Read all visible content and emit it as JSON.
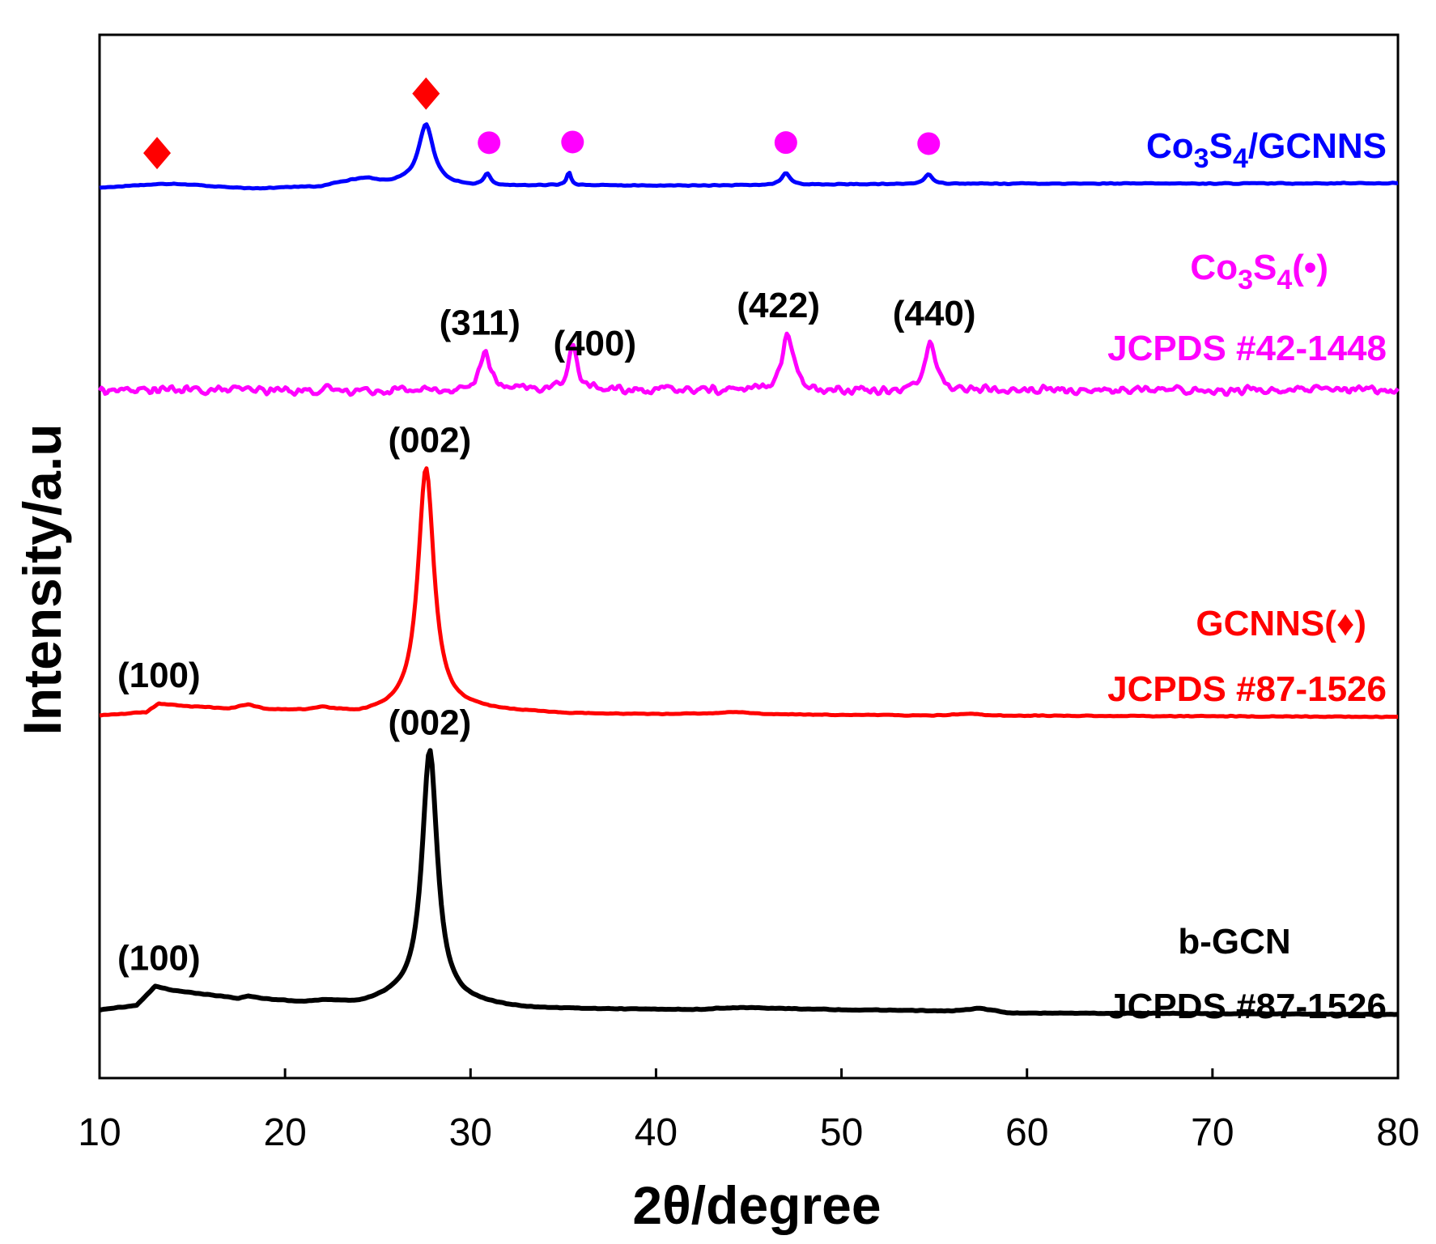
{
  "chart_data": {
    "type": "line",
    "title": "",
    "xlabel": "2θ/degree",
    "ylabel": "Intensity/a.u",
    "xlim": [
      10,
      80
    ],
    "xticks": [
      10,
      20,
      30,
      40,
      50,
      60,
      70,
      80
    ],
    "xtick_labels": [
      "10",
      "20",
      "30",
      "40",
      "50",
      "60",
      "70",
      "80"
    ],
    "yticks_shown": false,
    "series": [
      {
        "key": "co3s4_gcnns",
        "name": "Co3S4/GCNNS",
        "color": "#0000ff",
        "baseline": [
          [
            10,
            0
          ],
          [
            12,
            0.6
          ],
          [
            14,
            1.0
          ],
          [
            16,
            0.4
          ],
          [
            18,
            -0.2
          ],
          [
            20,
            0.1
          ],
          [
            22,
            0.3
          ],
          [
            23,
            1.4
          ],
          [
            24.3,
            2.2
          ],
          [
            25.5,
            1.2
          ],
          [
            26.5,
            1.4
          ],
          [
            30,
            0.3
          ],
          [
            35,
            0.6
          ],
          [
            40,
            0.5
          ],
          [
            46,
            0.6
          ],
          [
            50,
            0.8
          ],
          [
            55,
            0.9
          ],
          [
            60,
            1.0
          ],
          [
            70,
            1.0
          ],
          [
            80,
            1.1
          ]
        ],
        "peaks": [
          [
            27.6,
            14,
            0.48
          ],
          [
            30.9,
            2.7,
            0.22
          ],
          [
            35.3,
            3.2,
            0.13
          ],
          [
            47.0,
            2.8,
            0.28
          ],
          [
            54.7,
            2.2,
            0.28
          ]
        ],
        "noise": 0.15
      },
      {
        "key": "co3s4_ref",
        "name": "Co3S4 JCPDS #42-1448",
        "color": "#ff00ff",
        "baseline": [
          [
            10,
            0
          ],
          [
            80,
            0
          ]
        ],
        "peaks": [
          [
            30.8,
            10,
            0.3
          ],
          [
            35.5,
            11,
            0.3
          ],
          [
            47.1,
            14,
            0.35
          ],
          [
            54.8,
            12,
            0.33
          ]
        ],
        "noise": 1.4
      },
      {
        "key": "gcnns",
        "name": "GCNNS JCPDS #87-1526",
        "color": "#ff0000",
        "baseline": [
          [
            10,
            0
          ],
          [
            12.5,
            0.8
          ],
          [
            13.2,
            3.2
          ],
          [
            14.5,
            2.5
          ],
          [
            17,
            1.8
          ],
          [
            18,
            2.8
          ],
          [
            19,
            1.5
          ],
          [
            21,
            1.3
          ],
          [
            22,
            1.8
          ],
          [
            24,
            0.4
          ],
          [
            26,
            1.2
          ],
          [
            30,
            1.5
          ],
          [
            35,
            0.5
          ],
          [
            40,
            0.3
          ],
          [
            43,
            0.5
          ],
          [
            44.5,
            0.9
          ],
          [
            46,
            0.3
          ],
          [
            55,
            0
          ],
          [
            57,
            0.5
          ],
          [
            58,
            0
          ],
          [
            80,
            -0.4
          ]
        ],
        "peaks": [
          [
            27.6,
            66,
            0.52
          ]
        ],
        "noise": 0.15
      },
      {
        "key": "bgcn",
        "name": "b-GCN JCPDS #87-1526",
        "color": "#000000",
        "baseline": [
          [
            10,
            0
          ],
          [
            12,
            1.5
          ],
          [
            13,
            8
          ],
          [
            14,
            6.5
          ],
          [
            16,
            5
          ],
          [
            17.5,
            3.8
          ],
          [
            18,
            4.5
          ],
          [
            19,
            3.5
          ],
          [
            21,
            2.5
          ],
          [
            22,
            3
          ],
          [
            24,
            2
          ],
          [
            26,
            4
          ],
          [
            30,
            2
          ],
          [
            33,
            0.5
          ],
          [
            37,
            0.3
          ],
          [
            42,
            0.1
          ],
          [
            44.5,
            0.8
          ],
          [
            50,
            0.1
          ],
          [
            56,
            -0.3
          ],
          [
            57.5,
            0.6
          ],
          [
            59,
            -1
          ],
          [
            70,
            -1.2
          ],
          [
            80,
            -1.5
          ]
        ],
        "peaks": [
          [
            27.8,
            85,
            0.5
          ]
        ],
        "noise": 0.15
      }
    ],
    "peak_labels": [
      {
        "series": "bgcn",
        "text": "(100)",
        "x": 13.2
      },
      {
        "series": "bgcn",
        "text": "(002)",
        "x": 27.8
      },
      {
        "series": "gcnns",
        "text": "(100)",
        "x": 13.2
      },
      {
        "series": "gcnns",
        "text": "(002)",
        "x": 27.8
      },
      {
        "series": "co3s4_ref",
        "text": "(311)",
        "x": 30.5
      },
      {
        "series": "co3s4_ref",
        "text": "(400)",
        "x": 36.7
      },
      {
        "series": "co3s4_ref",
        "text": "(422)",
        "x": 46.6
      },
      {
        "series": "co3s4_ref",
        "text": "(440)",
        "x": 55.0
      }
    ],
    "markers": [
      {
        "series": "co3s4_gcnns",
        "shape": "diamond",
        "color": "#ff0000",
        "x": 13.1
      },
      {
        "series": "co3s4_gcnns",
        "shape": "diamond",
        "color": "#ff0000",
        "x": 27.6
      },
      {
        "series": "co3s4_gcnns",
        "shape": "circle",
        "color": "#ff00ff",
        "x": 31.0
      },
      {
        "series": "co3s4_gcnns",
        "shape": "circle",
        "color": "#ff00ff",
        "x": 35.5
      },
      {
        "series": "co3s4_gcnns",
        "shape": "circle",
        "color": "#ff00ff",
        "x": 47.0
      },
      {
        "series": "co3s4_gcnns",
        "shape": "circle",
        "color": "#ff00ff",
        "x": 54.7
      }
    ],
    "legend_labels": {
      "co3s4_gcnns": {
        "formula_main": "Co",
        "sub1": "3",
        "mid": "S",
        "sub2": "4",
        "suffix": "/GCNNS"
      },
      "co3s4_ref": {
        "formula_main": "Co",
        "sub1": "3",
        "mid": "S",
        "sub2": "4",
        "suffix": "(•)",
        "card": "JCPDS #42-1448"
      },
      "gcnns": {
        "name": "GCNNS(♦)",
        "card": "JCPDS #87-1526"
      },
      "bgcn": {
        "name": "b-GCN",
        "card": "JCPDS #87-1526"
      }
    }
  }
}
